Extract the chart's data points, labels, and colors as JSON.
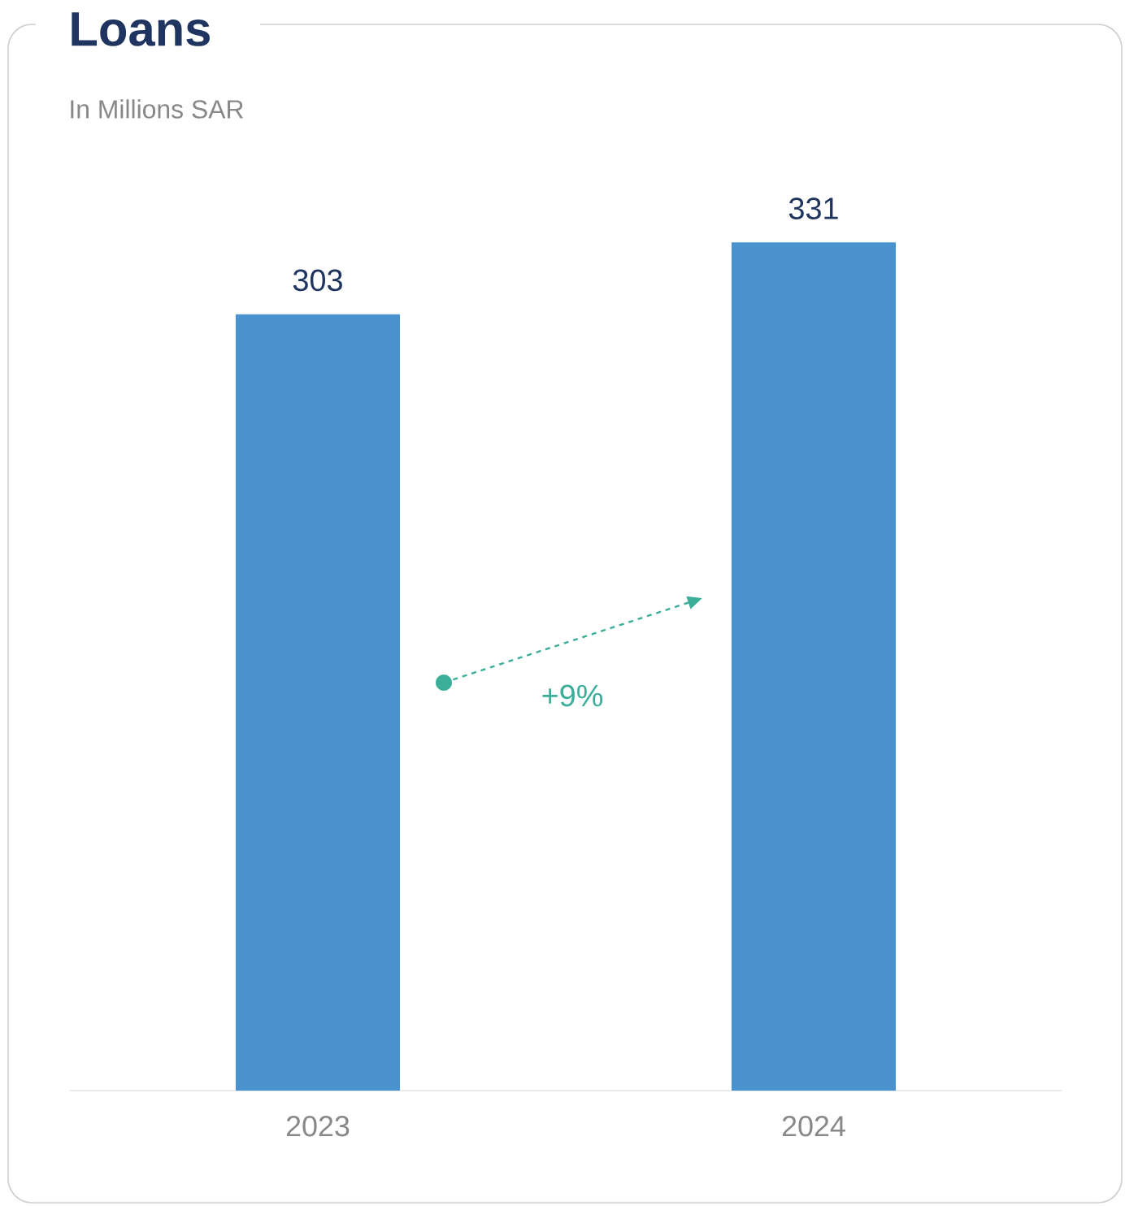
{
  "chart_data": {
    "type": "bar",
    "title": "Loans",
    "subtitle": "In Millions SAR",
    "categories": [
      "2023",
      "2024"
    ],
    "values": [
      303,
      331
    ],
    "color": "#4a93cf",
    "data_labels": true,
    "annotations": [
      "+9%"
    ]
  }
}
